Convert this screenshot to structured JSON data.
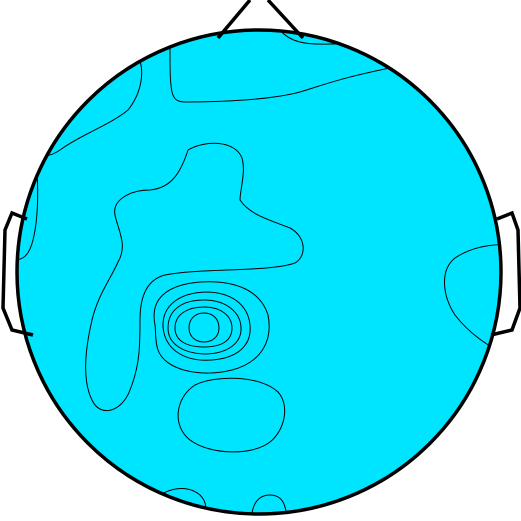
{
  "colors": {
    "background": "#ffffff",
    "outline": "#000000",
    "level_1": "#0a7ef2",
    "level_2": "#00e5ff",
    "level_3": "#5effa8",
    "level_4": "#c0ff48",
    "level_5": "#ffe600",
    "level_6": "#ff8a00",
    "level_7": "#ff2000"
  }
}
